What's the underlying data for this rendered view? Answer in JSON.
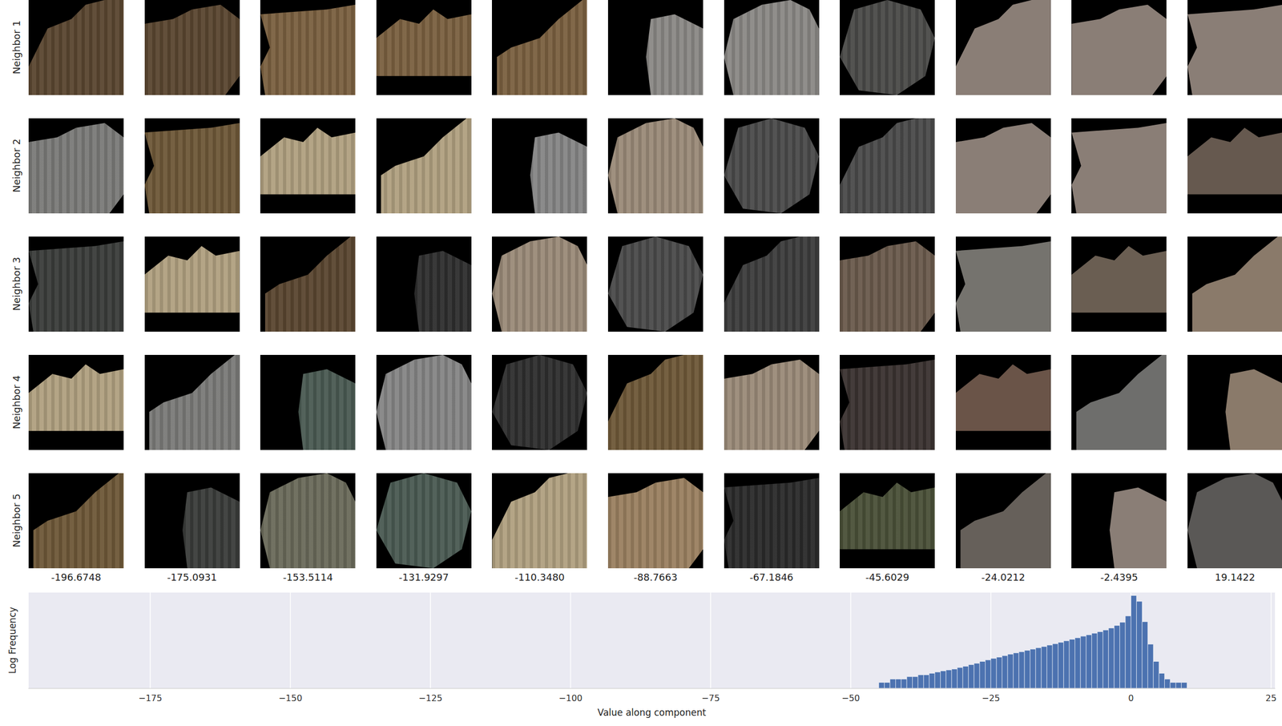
{
  "patch_grid": {
    "rows": [
      {
        "label": "Neighbor 1",
        "colors": [
          "#5a4630",
          "#5a4630",
          "#7a6040",
          "#7a6040",
          "#7a6040",
          "#8a8885",
          "#8a8885",
          "#4a4a48",
          "#8a7e76",
          "#8a7e76",
          "#8a7e76"
        ]
      },
      {
        "label": "Neighbor 2",
        "colors": [
          "#7a7a78",
          "#6e5838",
          "#b0a080",
          "#b0a080",
          "#858585",
          "#9a8a78",
          "#4a4a4a",
          "#4a4a4a",
          "#8a7e76",
          "#8a7e76",
          "#66594f"
        ]
      },
      {
        "label": "Neighbor 3",
        "colors": [
          "#3a3c3a",
          "#b0a080",
          "#5a4630",
          "#2e2e2e",
          "#9a8a78",
          "#4a4a4a",
          "#3c3c3c",
          "#6a5a4c",
          "#75736e",
          "#6a5e52",
          "#8a7a6a"
        ]
      },
      {
        "label": "Neighbor 4",
        "colors": [
          "#b0a080",
          "#7a7a78",
          "#4a5a52",
          "#858585",
          "#2e2e2e",
          "#6e5838",
          "#9a8a78",
          "#3a3230",
          "#6a5448",
          "#6e6e6c",
          "#8a7a6a"
        ]
      },
      {
        "label": "Neighbor 5",
        "colors": [
          "#6e5838",
          "#3a3c3a",
          "#6a6a5a",
          "#4a5a52",
          "#b0a080",
          "#9a8060",
          "#2a2a2a",
          "#4a5038",
          "#66605a",
          "#8a7e76",
          "#5a5856"
        ]
      }
    ],
    "column_labels": [
      "-196.6748",
      "-175.0931",
      "-153.5114",
      "-131.9297",
      "-110.3480",
      "-88.7663",
      "-67.1846",
      "-45.6029",
      "-24.0212",
      "-2.4395",
      "19.1422"
    ]
  },
  "chart_data": {
    "type": "histogram",
    "x_label": "Value along component",
    "y_label": "Log Frequency",
    "bins": [
      -45,
      -44,
      -43,
      -42,
      -41,
      -40,
      -39,
      -38,
      -37,
      -36,
      -35,
      -34,
      -33,
      -32,
      -31,
      -30,
      -29,
      -28,
      -27,
      -26,
      -25,
      -24,
      -23,
      -22,
      -21,
      -20,
      -19,
      -18,
      -17,
      -16,
      -15,
      -14,
      -13,
      -12,
      -11,
      -10,
      -9,
      -8,
      -7,
      -6,
      -5,
      -4,
      -3,
      -2,
      -1,
      0,
      1,
      2,
      3,
      4,
      5,
      6,
      7,
      8,
      9,
      10
    ],
    "values": [
      2,
      2,
      3,
      3,
      3,
      4,
      4,
      5,
      5,
      6,
      7,
      8,
      9,
      10,
      12,
      14,
      17,
      20,
      25,
      30,
      36,
      42,
      50,
      60,
      70,
      80,
      95,
      110,
      130,
      150,
      180,
      210,
      250,
      300,
      360,
      430,
      520,
      620,
      750,
      900,
      1100,
      1400,
      1900,
      2800,
      6000,
      70000,
      35000,
      3000,
      200,
      25,
      6,
      3,
      2,
      2,
      2
    ],
    "color": "#4c72b0",
    "xlim": [
      -196.7,
      25.7
    ],
    "xticks": [
      {
        "value": -175,
        "label": "−175"
      },
      {
        "value": -150,
        "label": "−150"
      },
      {
        "value": -125,
        "label": "−125"
      },
      {
        "value": -100,
        "label": "−100"
      },
      {
        "value": -75,
        "label": "−75"
      },
      {
        "value": -50,
        "label": "−50"
      },
      {
        "value": -25,
        "label": "−25"
      },
      0,
      25
    ],
    "ylim": [
      1,
      100000
    ],
    "log": "y",
    "grid": true,
    "tick_labels": "x"
  }
}
